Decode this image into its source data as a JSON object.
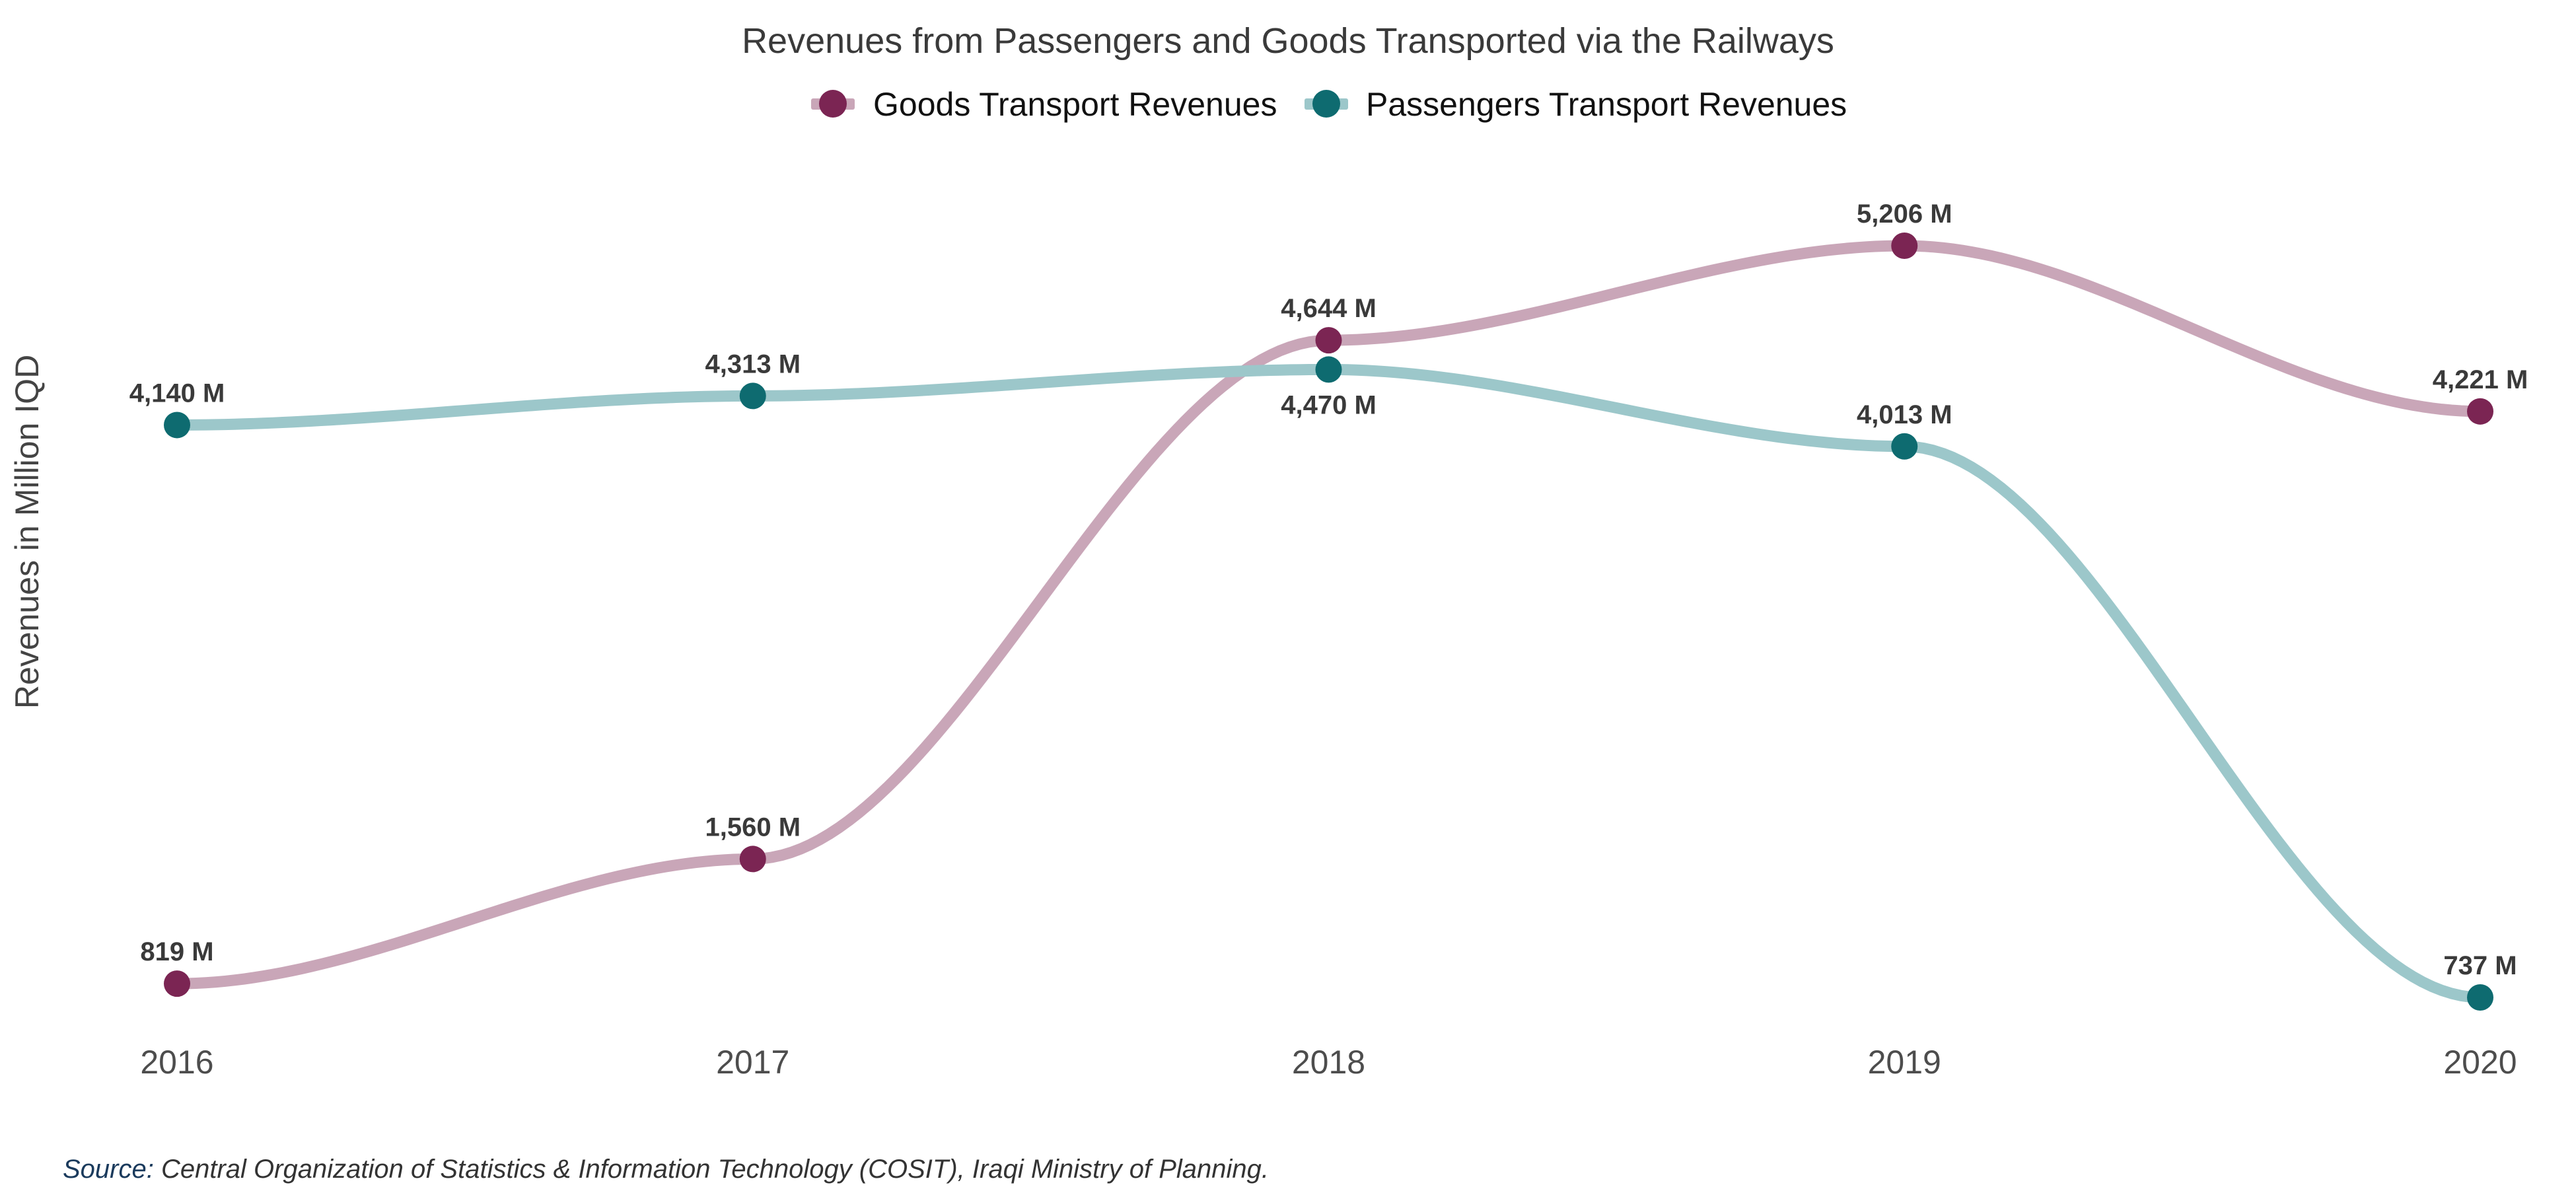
{
  "chart_data": {
    "type": "line",
    "title": "Revenues from Passengers and Goods Transported via the Railways",
    "ylabel": "Revenues in Million IQD",
    "xlabel": "",
    "categories": [
      "2016",
      "2017",
      "2018",
      "2019",
      "2020"
    ],
    "ylim": [
      737,
      5206
    ],
    "grid": false,
    "legend_position": "top",
    "smooth": true,
    "series": [
      {
        "name": "Goods Transport Revenues",
        "values": [
          819,
          1560,
          4644,
          5206,
          4221
        ],
        "labels": [
          "819 M",
          "1,560 M",
          "4,644 M",
          "5,206 M",
          "4,221 M"
        ],
        "label_side": [
          "above",
          "above",
          "above",
          "above",
          "above"
        ],
        "line_color": "#c9a6b8",
        "point_color": "#7b2553"
      },
      {
        "name": "Passengers Transport Revenues",
        "values": [
          4140,
          4313,
          4470,
          4013,
          737
        ],
        "labels": [
          "4,140 M",
          "4,313 M",
          "4,470 M",
          "4,013 M",
          "737 M"
        ],
        "label_side": [
          "above",
          "above",
          "below",
          "above",
          "above"
        ],
        "line_color": "#9cc7ca",
        "point_color": "#0e6b70"
      }
    ]
  },
  "source": {
    "prefix": "Source:",
    "text": " Central Organization of Statistics & Information Technology (COSIT), Iraqi Ministry of Planning."
  }
}
